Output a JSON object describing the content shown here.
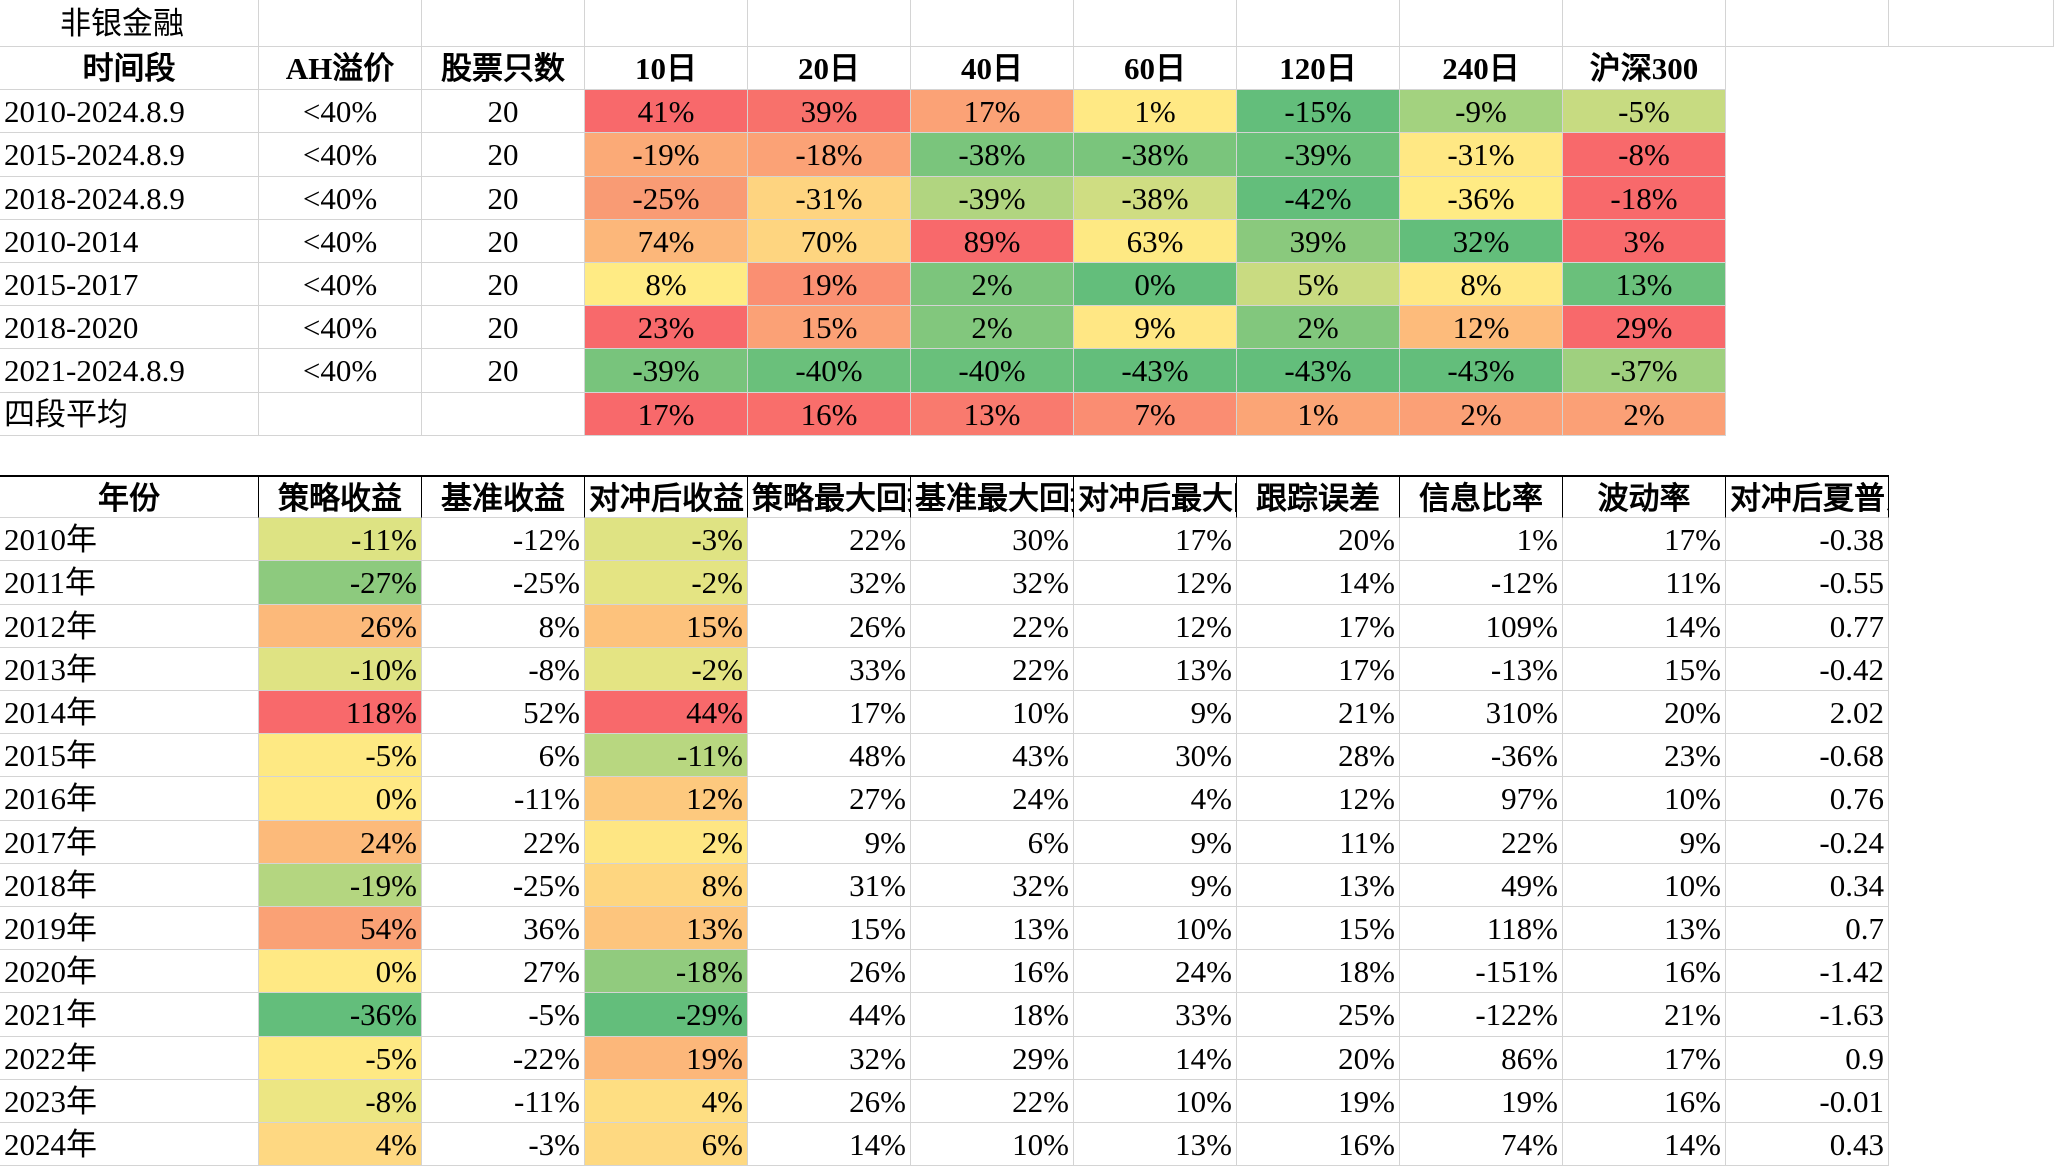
{
  "top": {
    "title": "非银金融",
    "header": [
      "时间段",
      "AH溢价",
      "股票只数",
      "10日",
      "20日",
      "40日",
      "60日",
      "120日",
      "240日",
      "沪深300"
    ],
    "rows": [
      [
        "2010-2024.8.9",
        "<40%",
        "20",
        "41%",
        "39%",
        "17%",
        "1%",
        "-15%",
        "-9%",
        "-5%"
      ],
      [
        "2015-2024.8.9",
        "<40%",
        "20",
        "-19%",
        "-18%",
        "-38%",
        "-38%",
        "-39%",
        "-31%",
        "-8%"
      ],
      [
        "2018-2024.8.9",
        "<40%",
        "20",
        "-25%",
        "-31%",
        "-39%",
        "-38%",
        "-42%",
        "-36%",
        "-18%"
      ],
      [
        "2010-2014",
        "<40%",
        "20",
        "74%",
        "70%",
        "89%",
        "63%",
        "39%",
        "32%",
        "3%"
      ],
      [
        "2015-2017",
        "<40%",
        "20",
        "8%",
        "19%",
        "2%",
        "0%",
        "5%",
        "8%",
        "13%"
      ],
      [
        "2018-2020",
        "<40%",
        "20",
        "23%",
        "15%",
        "2%",
        "9%",
        "2%",
        "12%",
        "29%"
      ],
      [
        "2021-2024.8.9",
        "<40%",
        "20",
        "-39%",
        "-40%",
        "-40%",
        "-43%",
        "-43%",
        "-43%",
        "-37%"
      ],
      [
        "四段平均",
        null,
        null,
        "17%",
        "16%",
        "13%",
        "7%",
        "1%",
        "2%",
        "2%"
      ]
    ],
    "colors": [
      [
        "#f8696b",
        "#f8716b",
        "#fba276",
        "#ffe984",
        "#63be7b",
        "#a3d27f",
        "#c7db81"
      ],
      [
        "#fbaa77",
        "#fba276",
        "#7ac57c",
        "#7ac57c",
        "#6cc17b",
        "#ffe884",
        "#f8696b"
      ],
      [
        "#f99b74",
        "#fed480",
        "#b1d580",
        "#cfdd82",
        "#63be7b",
        "#ffeb84",
        "#f8696b"
      ],
      [
        "#fcb77a",
        "#fed580",
        "#f8696b",
        "#fee983",
        "#8ac97d",
        "#63be7b",
        "#f8696b"
      ],
      [
        "#ffeb84",
        "#fa8f72",
        "#7cc57c",
        "#63be7b",
        "#c9db81",
        "#ffe884",
        "#6ac07b"
      ],
      [
        "#f8696b",
        "#fba176",
        "#82c77d",
        "#ffe784",
        "#82c77d",
        "#fdbb7b",
        "#f8696b"
      ],
      [
        "#78c47c",
        "#6ac07b",
        "#69c07b",
        "#63be7b",
        "#63be7b",
        "#63be7b",
        "#9fd07f"
      ],
      [
        "#f8696b",
        "#f96e6b",
        "#f97a6e",
        "#fa8d72",
        "#fba576",
        "#fba076",
        "#fba076"
      ]
    ]
  },
  "bottom": {
    "header": [
      "年份",
      "策略收益",
      "基准收益",
      "对冲后收益",
      "策略最大回撤",
      "基准最大回撤",
      "对冲后最大回撤",
      "跟踪误差",
      "信息比率",
      "波动率",
      "对冲后夏普比率"
    ],
    "rows": [
      [
        "2010年",
        "-11%",
        "-12%",
        "-3%",
        "22%",
        "30%",
        "17%",
        "20%",
        "1%",
        "17%",
        "-0.38"
      ],
      [
        "2011年",
        "-27%",
        "-25%",
        "-2%",
        "32%",
        "32%",
        "12%",
        "14%",
        "-12%",
        "11%",
        "-0.55"
      ],
      [
        "2012年",
        "26%",
        "8%",
        "15%",
        "26%",
        "22%",
        "12%",
        "17%",
        "109%",
        "14%",
        "0.77"
      ],
      [
        "2013年",
        "-10%",
        "-8%",
        "-2%",
        "33%",
        "22%",
        "13%",
        "17%",
        "-13%",
        "15%",
        "-0.42"
      ],
      [
        "2014年",
        "118%",
        "52%",
        "44%",
        "17%",
        "10%",
        "9%",
        "21%",
        "310%",
        "20%",
        "2.02"
      ],
      [
        "2015年",
        "-5%",
        "6%",
        "-11%",
        "48%",
        "43%",
        "30%",
        "28%",
        "-36%",
        "23%",
        "-0.68"
      ],
      [
        "2016年",
        "0%",
        "-11%",
        "12%",
        "27%",
        "24%",
        "4%",
        "12%",
        "97%",
        "10%",
        "0.76"
      ],
      [
        "2017年",
        "24%",
        "22%",
        "2%",
        "9%",
        "6%",
        "9%",
        "11%",
        "22%",
        "9%",
        "-0.24"
      ],
      [
        "2018年",
        "-19%",
        "-25%",
        "8%",
        "31%",
        "32%",
        "9%",
        "13%",
        "49%",
        "10%",
        "0.34"
      ],
      [
        "2019年",
        "54%",
        "36%",
        "13%",
        "15%",
        "13%",
        "10%",
        "15%",
        "118%",
        "13%",
        "0.7"
      ],
      [
        "2020年",
        "0%",
        "27%",
        "-18%",
        "26%",
        "16%",
        "24%",
        "18%",
        "-151%",
        "16%",
        "-1.42"
      ],
      [
        "2021年",
        "-36%",
        "-5%",
        "-29%",
        "44%",
        "18%",
        "33%",
        "25%",
        "-122%",
        "21%",
        "-1.63"
      ],
      [
        "2022年",
        "-5%",
        "-22%",
        "19%",
        "32%",
        "29%",
        "14%",
        "20%",
        "86%",
        "17%",
        "0.9"
      ],
      [
        "2023年",
        "-8%",
        "-11%",
        "4%",
        "26%",
        "22%",
        "10%",
        "19%",
        "19%",
        "16%",
        "-0.01"
      ],
      [
        "2024年",
        "4%",
        "-3%",
        "6%",
        "14%",
        "10%",
        "13%",
        "16%",
        "74%",
        "14%",
        "0.43"
      ]
    ],
    "colors": [
      [
        "#dde383",
        "#dfe383"
      ],
      [
        "#8dca7e",
        "#e4e483"
      ],
      [
        "#fcb97a",
        "#fdc27c"
      ],
      [
        "#dfe383",
        "#e4e483"
      ],
      [
        "#f8696b",
        "#f8696b"
      ],
      [
        "#fee983",
        "#b8d780"
      ],
      [
        "#ffe984",
        "#fdc97e"
      ],
      [
        "#fcba7a",
        "#fee683"
      ],
      [
        "#b4d680",
        "#fed680"
      ],
      [
        "#faa175",
        "#fdc57d"
      ],
      [
        "#ffe984",
        "#91cb7e"
      ],
      [
        "#63be7b",
        "#63be7b"
      ],
      [
        "#fee983",
        "#fcb77a"
      ],
      [
        "#ece683",
        "#fede82"
      ],
      [
        "#fed882",
        "#fed981"
      ]
    ]
  }
}
